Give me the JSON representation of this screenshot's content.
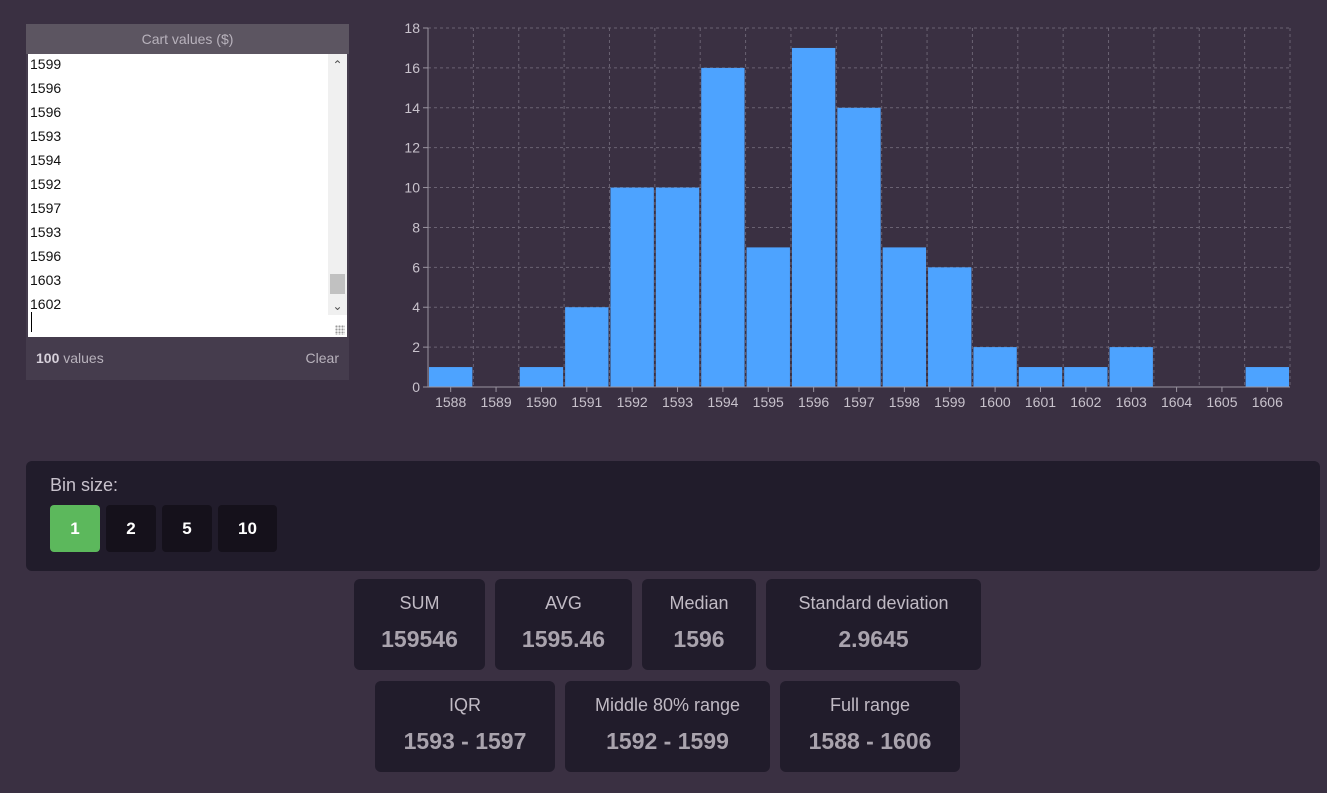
{
  "values_panel": {
    "title": "Cart values ($)",
    "visible_values": [
      "1599",
      "1596",
      "1596",
      "1593",
      "1594",
      "1592",
      "1597",
      "1593",
      "1596",
      "1603",
      "1602"
    ],
    "count": "100",
    "count_suffix": "values",
    "clear_label": "Clear"
  },
  "chart_data": {
    "type": "bar",
    "categories": [
      "1588",
      "1589",
      "1590",
      "1591",
      "1592",
      "1593",
      "1594",
      "1595",
      "1596",
      "1597",
      "1598",
      "1599",
      "1600",
      "1601",
      "1602",
      "1603",
      "1604",
      "1605",
      "1606"
    ],
    "values": [
      1,
      0,
      1,
      4,
      10,
      10,
      16,
      7,
      17,
      14,
      7,
      6,
      2,
      1,
      1,
      2,
      0,
      0,
      1
    ],
    "ylim": [
      0,
      18
    ],
    "yticks": [
      0,
      2,
      4,
      6,
      8,
      10,
      12,
      14,
      16,
      18
    ],
    "grid": true,
    "bar_color": "#4da3ff"
  },
  "bin_size": {
    "label": "Bin size:",
    "options": [
      "1",
      "2",
      "5",
      "10"
    ],
    "selected": "1",
    "active_color": "#5cb85c"
  },
  "stats": {
    "sum": {
      "label": "SUM",
      "value": "159546"
    },
    "avg": {
      "label": "AVG",
      "value": "1595.46"
    },
    "median": {
      "label": "Median",
      "value": "1596"
    },
    "std": {
      "label": "Standard deviation",
      "value": "2.9645"
    },
    "iqr": {
      "label": "IQR",
      "value": "1593 - 1597"
    },
    "mid80": {
      "label": "Middle 80% range",
      "value": "1592 - 1599"
    },
    "range": {
      "label": "Full range",
      "value": "1588 - 1606"
    }
  }
}
